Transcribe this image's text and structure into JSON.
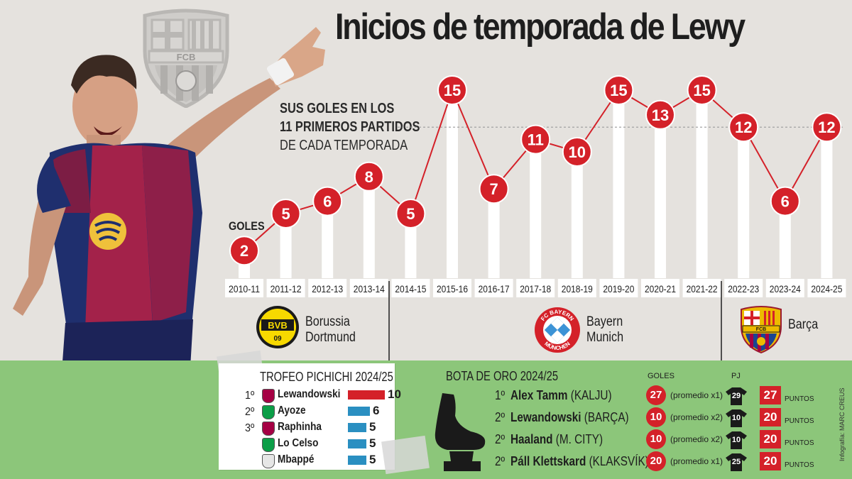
{
  "title": "Inicios de temporada de Lewy",
  "subtitle": {
    "line1": "SUS GOLES EN LOS",
    "line2": "11 PRIMEROS PARTIDOS",
    "line3": "DE CADA TEMPORADA"
  },
  "crest_text": "FCB",
  "goles_label": "GOLES",
  "colors": {
    "red": "#d42129",
    "blue": "#2a8fc1",
    "green": "#8cc67a",
    "background": "#e5e2de"
  },
  "chart_data": {
    "type": "line",
    "title": "Inicios de temporada de Lewy",
    "ylabel": "GOLES",
    "x": [
      "2010-11",
      "2011-12",
      "2012-13",
      "2013-14",
      "2014-15",
      "2015-16",
      "2016-17",
      "2017-18",
      "2018-19",
      "2019-20",
      "2020-21",
      "2021-22",
      "2022-23",
      "2023-24",
      "2024-25"
    ],
    "series": [
      {
        "values": [
          2,
          5,
          6,
          8,
          5,
          15,
          7,
          11,
          10,
          15,
          13,
          15,
          12,
          6,
          12
        ]
      }
    ],
    "reference_line": 12,
    "ylim": [
      0,
      16
    ],
    "grid": false
  },
  "teams": [
    {
      "name": "Borussia\nDortmund",
      "line1": "Borussia",
      "line2": "Dortmund",
      "logo": "bvb-logo",
      "logo_text": "BVB",
      "logo_sub": "09"
    },
    {
      "name": "Bayern\nMunich",
      "line1": "Bayern",
      "line2": "Munich",
      "logo": "bayern-logo",
      "logo_text_top": "FC BAYERN",
      "logo_text_bottom": "MÜNCHEN"
    },
    {
      "name": "Barça",
      "line1": "Barça",
      "line2": "",
      "logo": "barca-logo",
      "logo_text": "FCB"
    }
  ],
  "pichichi": {
    "title": "TROFEO PICHICHI 2024/25",
    "rows": [
      {
        "rank": "1º",
        "name": "Lewandowski",
        "goals": 10,
        "club_icon": "barca-crest-icon"
      },
      {
        "rank": "2º",
        "name": "Ayoze",
        "goals": 6,
        "club_icon": "betis-crest-icon"
      },
      {
        "rank": "3º",
        "name": "Raphinha",
        "goals": 5,
        "club_icon": "barca-crest-icon"
      },
      {
        "rank": "",
        "name": "Lo Celso",
        "goals": 5,
        "club_icon": "betis-crest-icon"
      },
      {
        "rank": "",
        "name": "Mbappé",
        "goals": 5,
        "club_icon": "real-madrid-crest-icon"
      }
    ]
  },
  "bota": {
    "title": "BOTA DE ORO 2024/25",
    "goles_header": "GOLES",
    "pj_header": "PJ",
    "points_label": "PUNTOS",
    "rows": [
      {
        "rank": "1º",
        "name": "Alex Tamm",
        "club": "(KALJU)",
        "goals": "27",
        "factor": "(promedio x1)",
        "pj": "29",
        "points": "27"
      },
      {
        "rank": "2º",
        "name": "Lewandowski",
        "club": "(BARÇA)",
        "goals": "10",
        "factor": "(promedio x2)",
        "pj": "10",
        "points": "20"
      },
      {
        "rank": "2º",
        "name": "Haaland",
        "club": "(M. CITY)",
        "goals": "10",
        "factor": "(promedio x2)",
        "pj": "10",
        "points": "20"
      },
      {
        "rank": "2º",
        "name": "Páll Klettskard",
        "club": "(KLAKSVÍK)",
        "goals": "20",
        "factor": "(promedio x1)",
        "pj": "25",
        "points": "20"
      }
    ]
  },
  "credit": "Infografía: MARC CREUS"
}
